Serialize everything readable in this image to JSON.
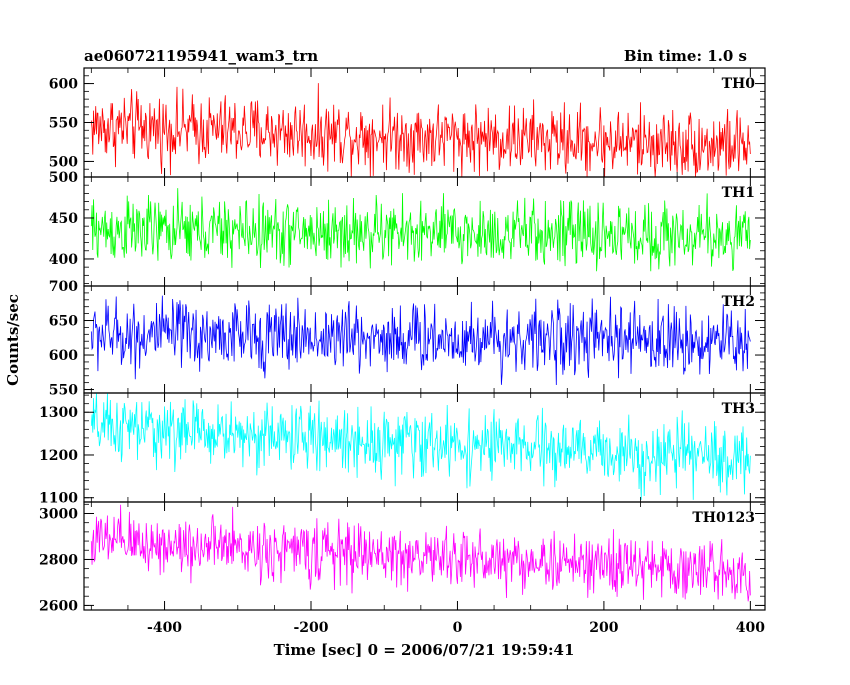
{
  "header": {
    "title": "ae060721195941_wam3_trn",
    "bin_time": "Bin time: 1.0 s"
  },
  "chart_data": {
    "type": "line",
    "title": "ae060721195941_wam3_trn",
    "xlabel": "Time [sec] 0 = 2006/07/21 19:59:41",
    "ylabel": "Counts/sec",
    "xlim": [
      -510,
      420
    ],
    "x_ticks": [
      "-400",
      "-200",
      "0",
      "200",
      "400"
    ],
    "x_tick_values": [
      -400,
      -200,
      0,
      200,
      400
    ],
    "bin_seconds": 1.0,
    "data_range_x": [
      -500,
      400
    ],
    "panels": [
      {
        "name": "TH0",
        "color": "#ff0000",
        "ylim": [
          480,
          620
        ],
        "y_ticks": [
          "500",
          "550",
          "600"
        ],
        "y_tick_values": [
          500,
          550,
          600
        ],
        "mean_start": 545,
        "mean_end": 520,
        "noise_amplitude": 22,
        "min": 480,
        "max": 620
      },
      {
        "name": "TH1",
        "color": "#00ff00",
        "ylim": [
          367,
          500
        ],
        "y_ticks": [
          "400",
          "450",
          "500"
        ],
        "y_tick_values": [
          400,
          450,
          500
        ],
        "mean_start": 435,
        "mean_end": 428,
        "noise_amplitude": 20,
        "min": 385,
        "max": 490
      },
      {
        "name": "TH2",
        "color": "#0000ff",
        "ylim": [
          545,
          700
        ],
        "y_ticks": [
          "550",
          "600",
          "650",
          "700"
        ],
        "y_tick_values": [
          550,
          600,
          650,
          700
        ],
        "mean_start": 630,
        "mean_end": 620,
        "noise_amplitude": 25,
        "min": 548,
        "max": 695
      },
      {
        "name": "TH3",
        "color": "#00ffff",
        "ylim": [
          1090,
          1345
        ],
        "y_ticks": [
          "1100",
          "1200",
          "1300"
        ],
        "y_tick_values": [
          1100,
          1200,
          1300
        ],
        "mean_start": 1265,
        "mean_end": 1190,
        "noise_amplitude": 38,
        "min": 1095,
        "max": 1345
      },
      {
        "name": "TH0123",
        "color": "#ff00ff",
        "ylim": [
          2580,
          3050
        ],
        "y_ticks": [
          "2600",
          "2800",
          "3000"
        ],
        "y_tick_values": [
          2600,
          2800,
          3000
        ],
        "mean_start": 2880,
        "mean_end": 2745,
        "noise_amplitude": 65,
        "min": 2590,
        "max": 3050
      }
    ]
  }
}
